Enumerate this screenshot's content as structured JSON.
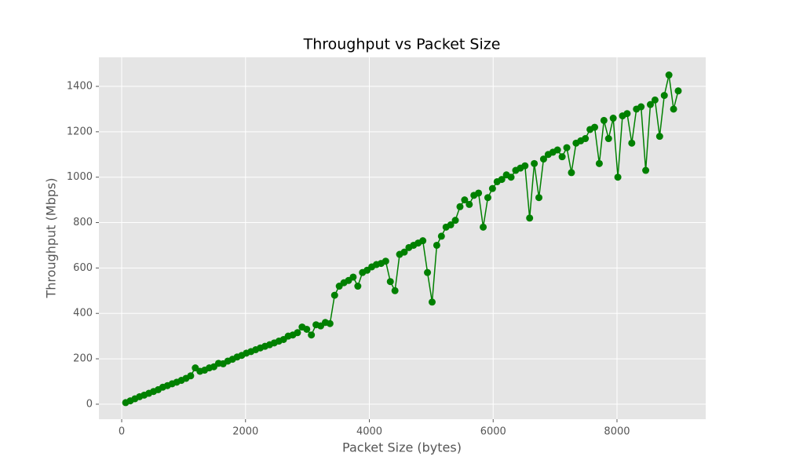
{
  "chart_data": {
    "type": "line",
    "title": "Throughput vs Packet Size",
    "xlabel": "Packet Size (bytes)",
    "ylabel": "Throughput (Mbps)",
    "x": [
      64,
      139,
      214,
      289,
      364,
      439,
      514,
      589,
      664,
      739,
      814,
      889,
      964,
      1039,
      1114,
      1189,
      1264,
      1339,
      1414,
      1489,
      1564,
      1639,
      1714,
      1789,
      1864,
      1939,
      2014,
      2089,
      2164,
      2239,
      2314,
      2389,
      2464,
      2539,
      2614,
      2689,
      2764,
      2839,
      2914,
      2989,
      3064,
      3139,
      3214,
      3289,
      3364,
      3439,
      3514,
      3589,
      3664,
      3739,
      3814,
      3889,
      3964,
      4039,
      4114,
      4189,
      4264,
      4339,
      4414,
      4489,
      4564,
      4639,
      4714,
      4789,
      4864,
      4939,
      5014,
      5089,
      5164,
      5239,
      5314,
      5389,
      5464,
      5539,
      5614,
      5689,
      5764,
      5839,
      5914,
      5989,
      6064,
      6139,
      6214,
      6289,
      6364,
      6439,
      6514,
      6589,
      6664,
      6739,
      6814,
      6889,
      6964,
      7039,
      7114,
      7189,
      7264,
      7339,
      7414,
      7489,
      7564,
      7639,
      7714,
      7789,
      7864,
      7939,
      8014,
      8089,
      8164,
      8239,
      8314,
      8389,
      8464,
      8539,
      8614,
      8689,
      8764,
      8839,
      8914,
      8989
    ],
    "values": [
      7,
      15,
      24,
      33,
      40,
      48,
      56,
      64,
      75,
      82,
      90,
      97,
      105,
      114,
      125,
      160,
      145,
      150,
      160,
      165,
      180,
      178,
      190,
      198,
      208,
      215,
      225,
      232,
      240,
      248,
      255,
      262,
      270,
      278,
      285,
      300,
      305,
      315,
      340,
      330,
      305,
      350,
      345,
      360,
      355,
      480,
      520,
      535,
      545,
      560,
      520,
      580,
      590,
      605,
      615,
      620,
      630,
      540,
      500,
      660,
      670,
      690,
      700,
      710,
      720,
      580,
      450,
      700,
      740,
      780,
      790,
      810,
      870,
      900,
      880,
      920,
      930,
      780,
      910,
      950,
      980,
      990,
      1010,
      1000,
      1030,
      1040,
      1050,
      820,
      1060,
      910,
      1080,
      1100,
      1110,
      1120,
      1090,
      1130,
      1020,
      1150,
      1160,
      1170,
      1210,
      1220,
      1060,
      1250,
      1170,
      1260,
      1000,
      1270,
      1280,
      1150,
      1300,
      1310,
      1030,
      1320,
      1340,
      1180,
      1360,
      1450,
      1300,
      1380
    ],
    "color": "#008000",
    "xlim": [
      -368,
      9433
    ],
    "xticks": [
      0,
      2000,
      4000,
      6000,
      8000
    ],
    "ylim": [
      -66,
      1528
    ],
    "yticks": [
      0,
      200,
      400,
      600,
      800,
      1000,
      1200,
      1400
    ],
    "grid": true
  }
}
